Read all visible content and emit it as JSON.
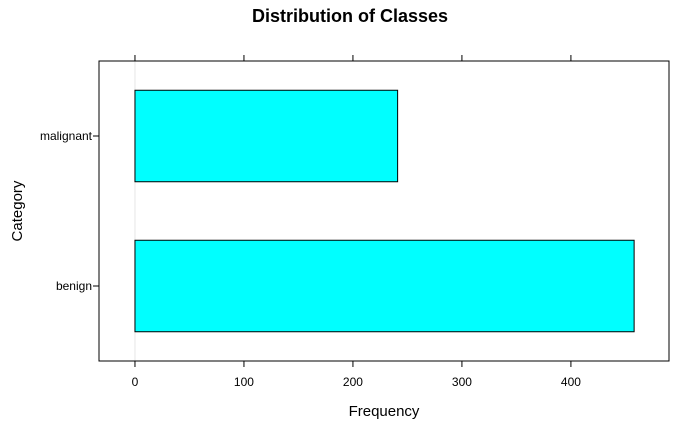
{
  "chart_data": {
    "type": "bar",
    "orientation": "horizontal",
    "title": "Distribution of Classes",
    "xlabel": "Frequency",
    "ylabel": "Category",
    "categories": [
      "malignant",
      "benign"
    ],
    "values": [
      241,
      458
    ],
    "xlim": [
      -33,
      490
    ],
    "xticks": [
      0,
      100,
      200,
      300,
      400
    ],
    "xtick_labels": [
      "0",
      "100",
      "200",
      "300",
      "400"
    ],
    "grid": false,
    "legend": "none",
    "bar_color": "#00ffff",
    "bar_edge_color": "#000000",
    "reference_line_color": "#e6e6e6"
  }
}
